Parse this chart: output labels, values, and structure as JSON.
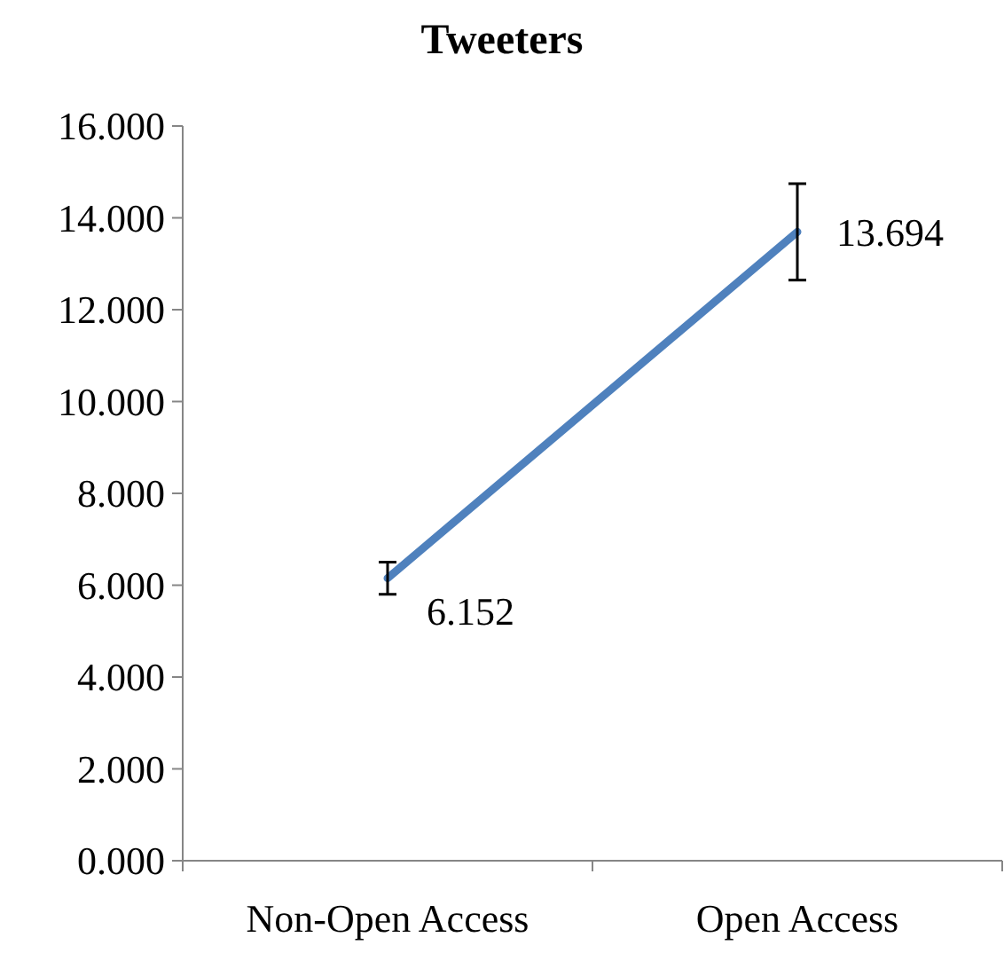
{
  "chart_data": {
    "type": "line",
    "title": "Tweeters",
    "categories": [
      "Non-Open Access",
      "Open Access"
    ],
    "series": [
      {
        "color": "#4f81bd",
        "values": [
          6.152,
          13.694
        ],
        "errors": [
          0.35,
          1.05
        ]
      }
    ],
    "ylim": [
      0,
      16
    ],
    "yticks": [
      {
        "value": 0,
        "label": "0.000"
      },
      {
        "value": 2,
        "label": "2.000"
      },
      {
        "value": 4,
        "label": "4.000"
      },
      {
        "value": 6,
        "label": "6.000"
      },
      {
        "value": 8,
        "label": "8.000"
      },
      {
        "value": 10,
        "label": "10.000"
      },
      {
        "value": 12,
        "label": "12.000"
      },
      {
        "value": 14,
        "label": "14.000"
      },
      {
        "value": 16,
        "label": "16.000"
      }
    ],
    "data_labels": true,
    "grid": false,
    "marker": "none",
    "line_style": "solid"
  }
}
